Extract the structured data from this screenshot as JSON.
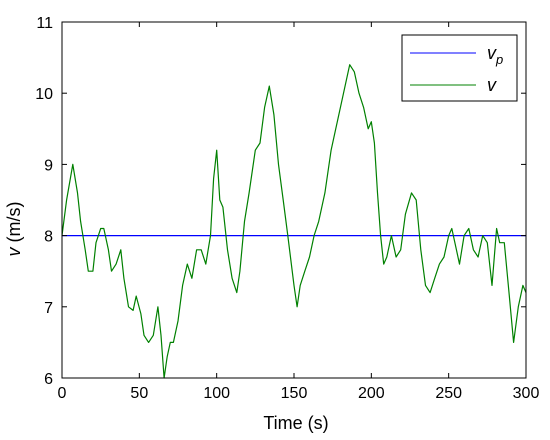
{
  "chart_data": {
    "type": "line",
    "xlabel": "Time (s)",
    "ylabel_symbol": "v",
    "ylabel_unit": " (m/s)",
    "xlim": [
      0,
      300
    ],
    "ylim": [
      6,
      11
    ],
    "xticks": [
      0,
      50,
      100,
      150,
      200,
      250,
      300
    ],
    "yticks": [
      6,
      7,
      8,
      9,
      10,
      11
    ],
    "grid": false,
    "legend_position": "top-right",
    "series": [
      {
        "name": "v",
        "name_subscript": "p",
        "color": "#0000ff",
        "x": [
          0,
          300
        ],
        "y": [
          8.0,
          8.0
        ]
      },
      {
        "name": "v",
        "color": "#008000",
        "x": [
          0,
          3,
          7,
          10,
          12,
          15,
          17,
          20,
          22,
          25,
          27,
          30,
          32,
          35,
          38,
          40,
          43,
          46,
          48,
          51,
          53,
          56,
          59,
          62,
          64,
          66,
          68,
          70,
          72,
          75,
          78,
          81,
          84,
          87,
          90,
          93,
          96,
          98,
          100,
          102,
          104,
          107,
          110,
          113,
          115,
          118,
          121,
          125,
          128,
          131,
          134,
          137,
          140,
          143,
          146,
          150,
          152,
          154,
          157,
          160,
          163,
          166,
          170,
          174,
          178,
          182,
          186,
          189,
          192,
          195,
          198,
          200,
          202,
          204,
          206,
          208,
          210,
          213,
          216,
          219,
          222,
          226,
          229,
          232,
          235,
          238,
          241,
          244,
          247,
          250,
          252,
          254,
          257,
          260,
          263,
          266,
          269,
          272,
          275,
          278,
          281,
          283,
          286,
          289,
          292,
          295,
          298,
          300
        ],
        "y": [
          8.0,
          8.5,
          9.0,
          8.6,
          8.2,
          7.8,
          7.5,
          7.5,
          7.9,
          8.1,
          8.1,
          7.8,
          7.5,
          7.6,
          7.8,
          7.4,
          7.0,
          6.95,
          7.15,
          6.9,
          6.6,
          6.5,
          6.6,
          7.0,
          6.6,
          6.0,
          6.3,
          6.5,
          6.5,
          6.8,
          7.3,
          7.6,
          7.4,
          7.8,
          7.8,
          7.6,
          8.0,
          8.8,
          9.2,
          8.5,
          8.4,
          7.8,
          7.4,
          7.2,
          7.5,
          8.2,
          8.6,
          9.2,
          9.3,
          9.8,
          10.1,
          9.7,
          9.0,
          8.5,
          8.0,
          7.3,
          7.0,
          7.3,
          7.5,
          7.7,
          8.0,
          8.2,
          8.6,
          9.2,
          9.6,
          10.0,
          10.4,
          10.3,
          10.0,
          9.8,
          9.5,
          9.6,
          9.3,
          8.6,
          8.0,
          7.6,
          7.7,
          8.0,
          7.7,
          7.8,
          8.3,
          8.6,
          8.5,
          7.8,
          7.3,
          7.2,
          7.4,
          7.6,
          7.7,
          8.0,
          8.1,
          7.9,
          7.6,
          8.0,
          8.1,
          7.8,
          7.7,
          8.0,
          7.9,
          7.3,
          8.1,
          7.9,
          7.9,
          7.2,
          6.5,
          7.0,
          7.3,
          7.2
        ]
      }
    ]
  }
}
